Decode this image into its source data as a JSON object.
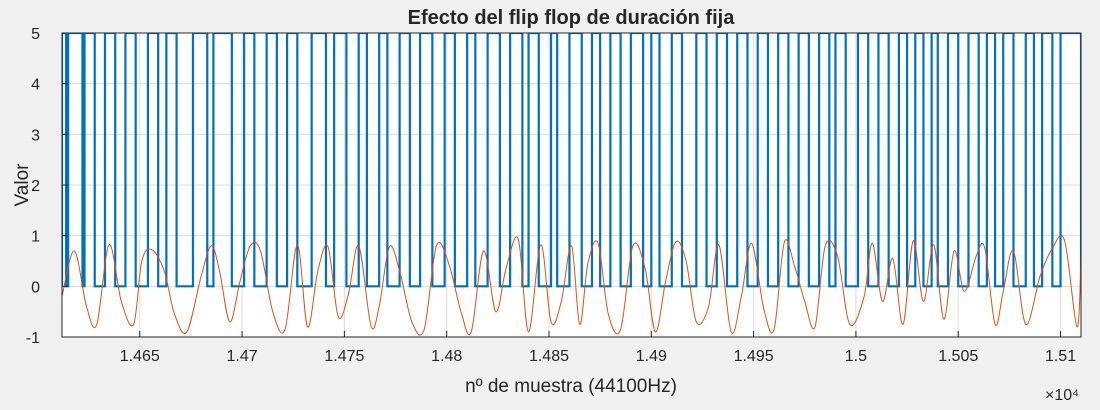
{
  "chart_data": {
    "type": "line",
    "title": "Efecto del flip flop de duración fija",
    "xlabel": "nº de muestra (44100Hz)",
    "ylabel": "Valor",
    "x_exponent_label": "×10⁴",
    "xlim": [
      14612,
      15110
    ],
    "ylim": [
      -1,
      5
    ],
    "grid": true,
    "x_ticks": [
      14650,
      14700,
      14750,
      14800,
      14850,
      14900,
      14950,
      15000,
      15050,
      15100
    ],
    "x_tick_labels": [
      "1.465",
      "1.47",
      "1.475",
      "1.48",
      "1.485",
      "1.49",
      "1.495",
      "1.5",
      "1.505",
      "1.51"
    ],
    "y_ticks": [
      -1,
      0,
      1,
      2,
      3,
      4,
      5
    ],
    "y_tick_labels": [
      "-1",
      "0",
      "1",
      "2",
      "3",
      "4",
      "5"
    ],
    "background_color": "#f0f0f0",
    "plot_area_color": "#ffffff",
    "series": [
      {
        "color": "#0072bd",
        "style": "step",
        "high_level": 5,
        "low_level": 0,
        "high_intervals": [
          [
            14612,
            14614
          ],
          [
            14615,
            14622
          ],
          [
            14623,
            14628
          ],
          [
            14633,
            14638
          ],
          [
            14643,
            14648
          ],
          [
            14654,
            14659
          ],
          [
            14663,
            14668
          ],
          [
            14676,
            14683
          ],
          [
            14686,
            14695
          ],
          [
            14701,
            14706
          ],
          [
            14712,
            14717
          ],
          [
            14722,
            14727
          ],
          [
            14734,
            14741
          ],
          [
            14745,
            14751
          ],
          [
            14757,
            14761
          ],
          [
            14767,
            14771
          ],
          [
            14777,
            14782
          ],
          [
            14787,
            14793
          ],
          [
            14799,
            14804
          ],
          [
            14810,
            14814
          ],
          [
            14820,
            14826
          ],
          [
            14831,
            14837
          ],
          [
            14840,
            14845
          ],
          [
            14851,
            14854
          ],
          [
            14860,
            14866
          ],
          [
            14871,
            14875
          ],
          [
            14880,
            14885
          ],
          [
            14890,
            14896
          ],
          [
            14900,
            14904
          ],
          [
            14910,
            14915
          ],
          [
            14922,
            14927
          ],
          [
            14932,
            14937
          ],
          [
            14942,
            14947
          ],
          [
            14952,
            14957
          ],
          [
            14962,
            14967
          ],
          [
            14972,
            14977
          ],
          [
            14982,
            14987
          ],
          [
            14990,
            14995
          ],
          [
            15001,
            15006
          ],
          [
            15011,
            15016
          ],
          [
            15021,
            15025
          ],
          [
            15029,
            15033
          ],
          [
            15037,
            15040
          ],
          [
            15045,
            15050
          ],
          [
            15055,
            15060
          ],
          [
            15064,
            15068
          ],
          [
            15072,
            15077
          ],
          [
            15083,
            15087
          ],
          [
            15091,
            15096
          ],
          [
            15100,
            15110
          ]
        ]
      },
      {
        "color": "#d95319",
        "style": "line",
        "x": [
          14612,
          14618,
          14624,
          14629,
          14635,
          14641,
          14647,
          14651,
          14656,
          14662,
          14667,
          14673,
          14680,
          14685,
          14689,
          14694,
          14699,
          14704,
          14709,
          14715,
          14721,
          14727,
          14732,
          14737,
          14742,
          14747,
          14752,
          14757,
          14763,
          14767,
          14772,
          14777,
          14783,
          14789,
          14795,
          14801,
          14807,
          14812,
          14818,
          14824,
          14829,
          14835,
          14840,
          14846,
          14851,
          14856,
          14861,
          14865,
          14869,
          14874,
          14879,
          14885,
          14891,
          14897,
          14902,
          14907,
          14912,
          14917,
          14922,
          14928,
          14933,
          14939,
          14944,
          14949,
          14955,
          14960,
          14965,
          14970,
          14975,
          14980,
          14985,
          14991,
          14997,
          15004,
          15008,
          15013,
          15018,
          15023,
          15028,
          15033,
          15038,
          15043,
          15048,
          15053,
          15059,
          15063,
          15068,
          15072,
          15077,
          15083,
          15090,
          15096,
          15102,
          15108,
          15110
        ],
        "y": [
          -0.2,
          0.7,
          -0.4,
          -0.75,
          0.82,
          -0.3,
          -0.75,
          0.5,
          0.72,
          0.3,
          -0.55,
          -0.9,
          0.2,
          0.8,
          0.3,
          -0.7,
          0.1,
          0.8,
          0.7,
          -0.5,
          -0.85,
          0.82,
          -0.8,
          0.3,
          0.78,
          -0.6,
          -0.15,
          0.8,
          -0.78,
          -0.4,
          0.78,
          0.3,
          -0.7,
          -0.85,
          0.8,
          0.45,
          -0.5,
          -0.9,
          0.7,
          -0.5,
          0.35,
          0.93,
          -0.9,
          0.82,
          -0.7,
          -0.3,
          0.8,
          -0.75,
          0.45,
          0.85,
          -0.55,
          -0.85,
          0.8,
          0.35,
          -0.9,
          0.1,
          0.88,
          0.5,
          -0.7,
          -0.4,
          0.82,
          -0.9,
          -0.2,
          0.85,
          -0.45,
          -0.85,
          0.87,
          0.4,
          -0.3,
          -0.8,
          0.8,
          0.6,
          -0.75,
          -0.2,
          0.85,
          -0.3,
          0.55,
          -0.75,
          0.9,
          -0.3,
          0.82,
          -0.65,
          0.7,
          -0.1,
          0.62,
          0.75,
          -0.75,
          -0.1,
          0.7,
          -0.75,
          0.2,
          0.75,
          0.9,
          -0.8,
          0.5
        ]
      }
    ]
  }
}
